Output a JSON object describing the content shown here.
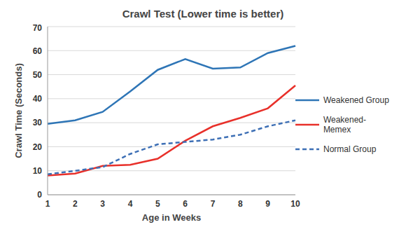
{
  "chart_data": {
    "type": "line",
    "title": "Crawl Test (Lower time is better)",
    "x_label": "Age in Weeks",
    "y_label": "Crawl Time (Seconds)",
    "categories": [
      1,
      2,
      3,
      4,
      5,
      6,
      7,
      8,
      9,
      10
    ],
    "series": [
      {
        "name": "Weakened Group",
        "color": "#2e75b6",
        "line_style": "solid",
        "values": [
          29.5,
          31,
          34.5,
          43,
          52,
          56.5,
          52.5,
          53,
          59,
          62
        ]
      },
      {
        "name": "Weakened-Memex",
        "color": "#e8302a",
        "line_style": "solid",
        "values": [
          8,
          8.8,
          12,
          12.5,
          15,
          22.5,
          28.5,
          32,
          36,
          45.5
        ]
      },
      {
        "name": "Normal Group",
        "color": "#3d6fb5",
        "line_style": "dashed",
        "values": [
          8.5,
          10,
          11.5,
          17,
          21,
          22,
          23,
          25,
          28.5,
          31
        ]
      }
    ],
    "ylim": [
      0,
      70
    ],
    "yticks": [
      0,
      10,
      20,
      30,
      40,
      50,
      60,
      70
    ],
    "grid": true,
    "legend": "right"
  }
}
